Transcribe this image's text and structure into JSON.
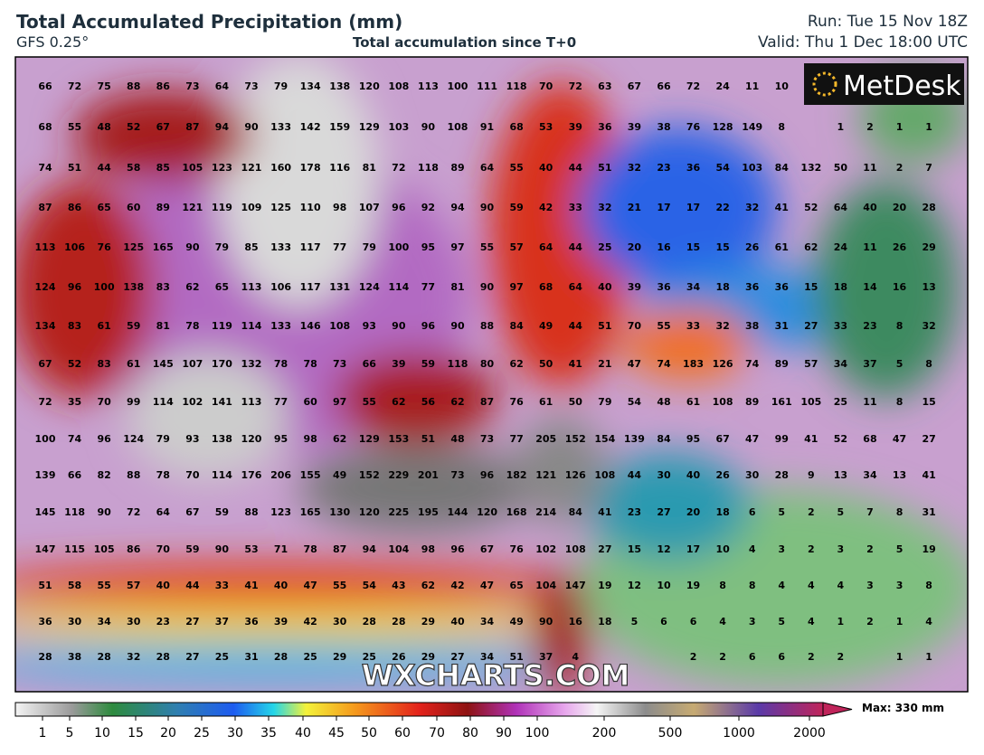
{
  "header": {
    "title": "Total Accumulated Precipitation (mm)",
    "model": "GFS 0.25°",
    "subtitle": "Total accumulation since T+0",
    "run": "Run: Tue 15 Nov 18Z",
    "valid": "Valid: Thu 1 Dec 18:00 UTC"
  },
  "logo": "MetDesk",
  "watermark": "WXCHARTS.COM",
  "grid_values": [
    [
      66,
      72,
      75,
      88,
      86,
      73,
      64,
      73,
      79,
      134,
      138,
      120,
      108,
      113,
      100,
      111,
      118,
      70,
      72,
      63,
      67,
      66,
      72,
      24,
      11,
      10,
      null,
      null,
      null,
      null,
      null
    ],
    [
      68,
      55,
      48,
      52,
      67,
      87,
      94,
      90,
      133,
      142,
      159,
      129,
      103,
      90,
      108,
      91,
      68,
      53,
      39,
      36,
      39,
      38,
      76,
      128,
      149,
      8,
      null,
      1,
      2,
      1,
      1
    ],
    [
      74,
      51,
      44,
      58,
      85,
      105,
      123,
      121,
      160,
      178,
      116,
      81,
      72,
      118,
      89,
      64,
      55,
      40,
      44,
      51,
      32,
      23,
      36,
      54,
      103,
      84,
      132,
      50,
      11,
      2,
      7
    ],
    [
      87,
      86,
      65,
      60,
      89,
      121,
      119,
      109,
      125,
      110,
      98,
      107,
      96,
      92,
      94,
      90,
      59,
      42,
      33,
      32,
      21,
      17,
      17,
      22,
      32,
      41,
      52,
      64,
      40,
      20,
      28
    ],
    [
      113,
      106,
      76,
      125,
      165,
      90,
      79,
      85,
      133,
      117,
      77,
      79,
      100,
      95,
      97,
      55,
      57,
      64,
      44,
      25,
      20,
      16,
      15,
      15,
      26,
      61,
      62,
      24,
      11,
      26,
      29
    ],
    [
      124,
      96,
      100,
      138,
      83,
      62,
      65,
      113,
      106,
      117,
      131,
      124,
      114,
      77,
      81,
      90,
      97,
      68,
      64,
      40,
      39,
      36,
      34,
      18,
      36,
      36,
      15,
      18,
      14,
      16,
      13
    ],
    [
      134,
      83,
      61,
      59,
      81,
      78,
      119,
      114,
      133,
      146,
      108,
      93,
      90,
      96,
      90,
      88,
      84,
      49,
      44,
      51,
      70,
      55,
      33,
      32,
      38,
      31,
      27,
      33,
      23,
      8,
      32
    ],
    [
      67,
      52,
      83,
      61,
      145,
      107,
      170,
      132,
      78,
      78,
      73,
      66,
      39,
      59,
      118,
      80,
      62,
      50,
      41,
      21,
      47,
      74,
      183,
      126,
      74,
      89,
      57,
      34,
      37,
      5,
      8
    ],
    [
      72,
      35,
      70,
      99,
      114,
      102,
      141,
      113,
      77,
      60,
      97,
      55,
      62,
      56,
      62,
      87,
      76,
      61,
      50,
      79,
      54,
      48,
      61,
      108,
      89,
      161,
      105,
      25,
      11,
      8,
      15
    ],
    [
      100,
      74,
      96,
      124,
      79,
      93,
      138,
      120,
      95,
      98,
      62,
      129,
      153,
      51,
      48,
      73,
      77,
      205,
      152,
      154,
      139,
      84,
      95,
      67,
      47,
      99,
      41,
      52,
      68,
      47,
      27
    ],
    [
      139,
      66,
      82,
      88,
      78,
      70,
      114,
      176,
      206,
      155,
      49,
      152,
      229,
      201,
      73,
      96,
      182,
      121,
      126,
      108,
      44,
      30,
      40,
      26,
      30,
      28,
      9,
      13,
      34,
      13,
      41
    ],
    [
      145,
      118,
      90,
      72,
      64,
      67,
      59,
      88,
      123,
      165,
      130,
      120,
      225,
      195,
      144,
      120,
      168,
      214,
      84,
      41,
      23,
      27,
      20,
      18,
      6,
      5,
      2,
      5,
      7,
      8,
      31
    ],
    [
      147,
      115,
      105,
      86,
      70,
      59,
      90,
      53,
      71,
      78,
      87,
      94,
      104,
      98,
      96,
      67,
      76,
      102,
      108,
      27,
      15,
      12,
      17,
      10,
      4,
      3,
      2,
      3,
      2,
      5,
      19
    ],
    [
      51,
      58,
      55,
      57,
      40,
      44,
      33,
      41,
      40,
      47,
      55,
      54,
      43,
      62,
      42,
      47,
      65,
      104,
      147,
      19,
      12,
      10,
      19,
      8,
      8,
      4,
      4,
      4,
      3,
      3,
      8
    ],
    [
      36,
      30,
      34,
      30,
      23,
      27,
      37,
      36,
      39,
      42,
      30,
      28,
      28,
      29,
      40,
      34,
      49,
      90,
      16,
      18,
      5,
      6,
      6,
      4,
      3,
      5,
      4,
      1,
      2,
      1,
      4
    ],
    [
      28,
      38,
      28,
      32,
      28,
      27,
      25,
      31,
      28,
      25,
      29,
      25,
      26,
      29,
      27,
      34,
      51,
      37,
      4,
      null,
      null,
      null,
      2,
      2,
      6,
      6,
      2,
      2,
      null,
      1,
      1
    ]
  ],
  "colorbar": {
    "labels": [
      1,
      5,
      10,
      15,
      20,
      25,
      30,
      35,
      40,
      45,
      50,
      60,
      70,
      80,
      90,
      100,
      200,
      500,
      1000,
      2000
    ],
    "max_label": "Max: 330 mm"
  }
}
